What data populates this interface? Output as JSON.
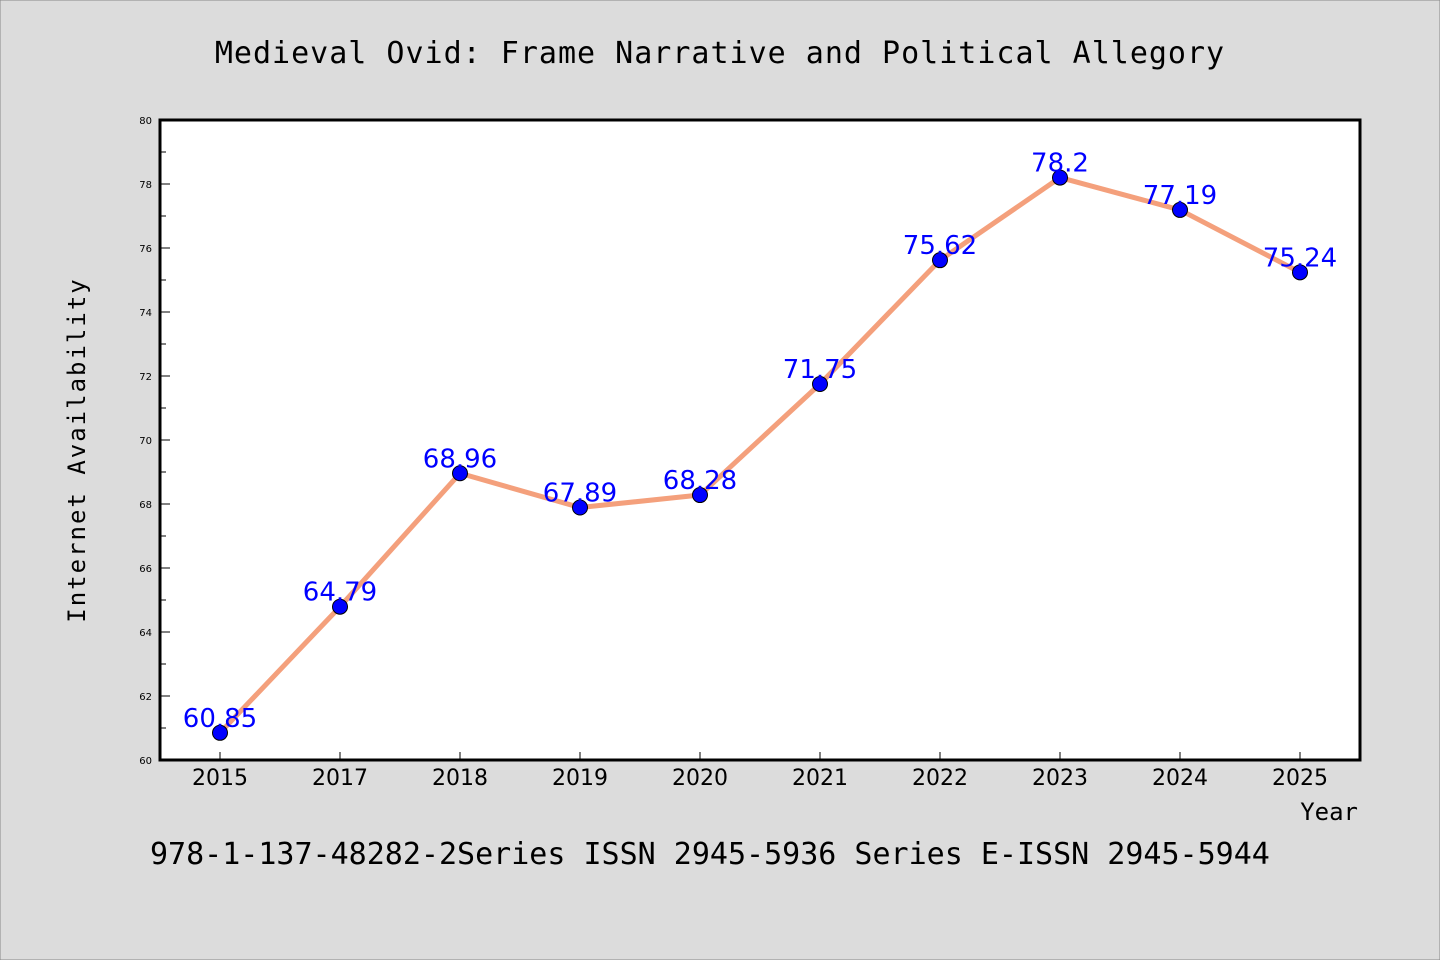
{
  "chart_data": {
    "type": "line",
    "title": "Medieval Ovid: Frame Narrative and Political Allegory",
    "xlabel": "Year",
    "ylabel": "Internet Availability",
    "footer": "978-1-137-48282-2Series ISSN 2945-5936 Series E-ISSN 2945-5944",
    "categories": [
      "2015",
      "2017",
      "2018",
      "2019",
      "2020",
      "2021",
      "2022",
      "2023",
      "2024",
      "2025"
    ],
    "series": [
      {
        "values": [
          60.85,
          64.79,
          68.96,
          67.89,
          68.28,
          71.75,
          75.62,
          78.2,
          77.19,
          75.24
        ]
      }
    ],
    "data_labels": [
      "60.85",
      "64.79",
      "68.96",
      "67.89",
      "68.28",
      "71.75",
      "75.62",
      "78.2",
      "77.19",
      "75.24"
    ],
    "ylim": [
      60,
      80
    ],
    "yticks": [
      "60",
      "62",
      "64",
      "66",
      "68",
      "70",
      "72",
      "74",
      "76",
      "78",
      "80"
    ],
    "grid": false,
    "legend": "none",
    "colors": {
      "background": "#dcdcdc",
      "plot_background": "#ffffff",
      "line": "#f4a07c",
      "marker": "#0000ff",
      "label": "#0000ff",
      "text": "#000000"
    }
  }
}
